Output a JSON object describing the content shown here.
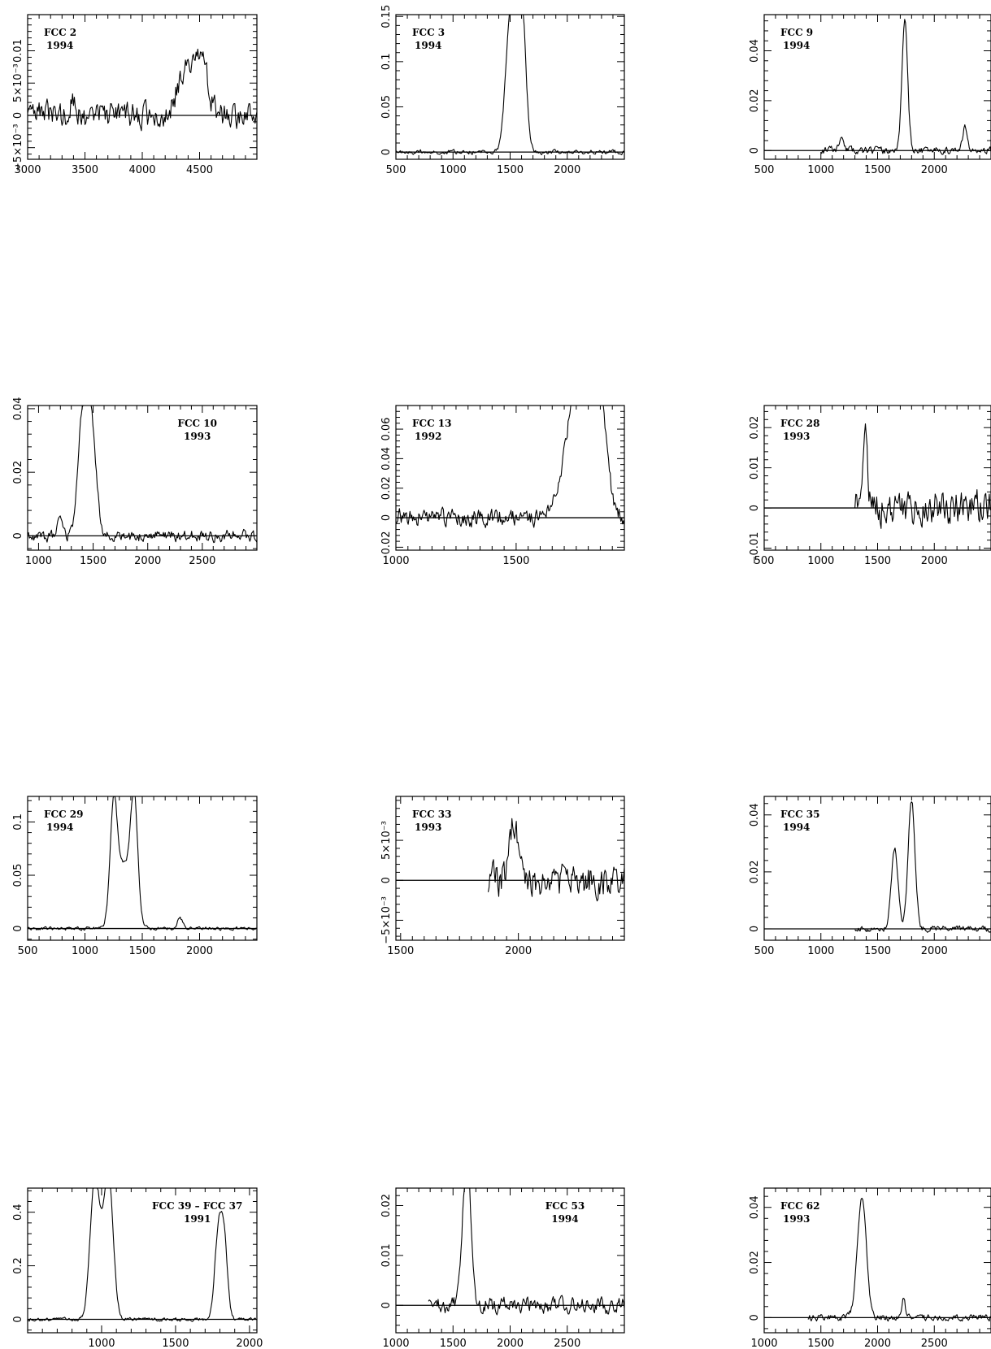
{
  "chart_data": [
    {
      "name": "FCC 2",
      "year": "1994",
      "type": "line",
      "xlim": [
        3000,
        5000
      ],
      "ylim": [
        -0.0068,
        0.0156
      ],
      "xticks": [
        3000,
        3500,
        4000,
        4500
      ],
      "xtick_labels": [
        "3000",
        "3500",
        "4000",
        "4500"
      ],
      "yticks": [
        -0.005,
        0,
        0.005,
        0.01
      ],
      "ytick_labels": [
        "−5×10⁻³",
        "0",
        "5×10⁻³",
        "0.01"
      ],
      "seed": 3,
      "noise": 0.0032,
      "baseline_from": 3000,
      "peaks": [
        [
          4400,
          80,
          0.0085
        ],
        [
          4530,
          45,
          0.0075
        ],
        [
          3400,
          30,
          0.002
        ]
      ],
      "label_pos": "left"
    },
    {
      "name": "FCC 3",
      "year": "1994",
      "type": "line",
      "xlim": [
        500,
        2500
      ],
      "ylim": [
        -0.008,
        0.152
      ],
      "xticks": [
        500,
        1000,
        1500,
        2000
      ],
      "xtick_labels": [
        "500",
        "1000",
        "1500",
        "2000"
      ],
      "yticks": [
        0,
        0.05,
        0.1,
        0.15
      ],
      "ytick_labels": [
        "0",
        "0.05",
        "0.1",
        "0.15"
      ],
      "seed": 7,
      "noise": 0.0035,
      "baseline_from": 500,
      "peaks": [
        [
          1500,
          40,
          0.12
        ],
        [
          1600,
          35,
          0.142
        ],
        [
          1550,
          60,
          0.05
        ]
      ],
      "label_pos": "left"
    },
    {
      "name": "FCC 9",
      "year": "1994",
      "type": "line",
      "xlim": [
        500,
        2500
      ],
      "ylim": [
        -0.0035,
        0.0545
      ],
      "xticks": [
        500,
        1000,
        1500,
        2000
      ],
      "xtick_labels": [
        "500",
        "1000",
        "1500",
        "2000"
      ],
      "yticks": [
        0,
        0.02,
        0.04
      ],
      "ytick_labels": [
        "0",
        "0.02",
        "0.04"
      ],
      "seed": 11,
      "noise": 0.0022,
      "baseline_from": 1000,
      "peaks": [
        [
          1740,
          25,
          0.052
        ],
        [
          2270,
          20,
          0.009
        ],
        [
          1180,
          20,
          0.005
        ]
      ],
      "label_pos": "left"
    },
    {
      "name": "FCC 10",
      "year": "1993",
      "type": "line",
      "xlim": [
        900,
        3000
      ],
      "ylim": [
        -0.0045,
        0.041
      ],
      "xticks": [
        1000,
        1500,
        2000,
        2500
      ],
      "xtick_labels": [
        "1000",
        "1500",
        "2000",
        "2500"
      ],
      "yticks": [
        0,
        0.02,
        0.04
      ],
      "ytick_labels": [
        "0",
        "0.02",
        "0.04"
      ],
      "seed": 17,
      "noise": 0.0028,
      "baseline_from": 900,
      "peaks": [
        [
          1400,
          40,
          0.034
        ],
        [
          1480,
          45,
          0.037
        ],
        [
          1200,
          20,
          0.008
        ]
      ],
      "label_pos": "right"
    },
    {
      "name": "FCC 13",
      "year": "1992",
      "type": "line",
      "xlim": [
        1000,
        1950
      ],
      "ylim": [
        -0.022,
        0.076
      ],
      "xticks": [
        1000,
        1500
      ],
      "xtick_labels": [
        "1000",
        "1500"
      ],
      "yticks": [
        -0.02,
        0,
        0.02,
        0.04,
        0.06
      ],
      "ytick_labels": [
        "−0.02",
        "0",
        "0.02",
        "0.04",
        "0.06"
      ],
      "seed": 23,
      "noise": 0.009,
      "baseline_from": 1000,
      "peaks": [
        [
          1730,
          40,
          0.05
        ],
        [
          1800,
          50,
          0.066
        ],
        [
          1850,
          25,
          0.055
        ]
      ],
      "label_pos": "left"
    },
    {
      "name": "FCC 28",
      "year": "1993",
      "type": "line",
      "xlim": [
        500,
        2500
      ],
      "ylim": [
        -0.0105,
        0.0255
      ],
      "xticks": [
        500,
        1000,
        1500,
        2000
      ],
      "xtick_labels": [
        "500",
        "1000",
        "1500",
        "2000"
      ],
      "yticks": [
        -0.01,
        0,
        0.01,
        0.02
      ],
      "ytick_labels": [
        "−0.01",
        "0",
        "0.01",
        "0.02"
      ],
      "seed": 29,
      "noise": 0.0065,
      "baseline_from": 1300,
      "peaks": [
        [
          1390,
          20,
          0.022
        ]
      ],
      "label_pos": "left"
    },
    {
      "name": "FCC 29",
      "year": "1994",
      "type": "line",
      "xlim": [
        500,
        2500
      ],
      "ylim": [
        -0.011,
        0.124
      ],
      "xticks": [
        500,
        1000,
        1500,
        2000
      ],
      "xtick_labels": [
        "500",
        "1000",
        "1500",
        "2000"
      ],
      "yticks": [
        0,
        0.05,
        0.1
      ],
      "ytick_labels": [
        "0",
        "0.05",
        "0.1"
      ],
      "seed": 31,
      "noise": 0.0025,
      "baseline_from": 500,
      "peaks": [
        [
          1250,
          30,
          0.1
        ],
        [
          1430,
          30,
          0.105
        ],
        [
          1340,
          70,
          0.06
        ],
        [
          1830,
          25,
          0.01
        ]
      ],
      "label_pos": "left"
    },
    {
      "name": "FCC 33",
      "year": "1993",
      "type": "line",
      "xlim": [
        1480,
        2450
      ],
      "ylim": [
        -0.0075,
        0.0105
      ],
      "xticks": [
        1500,
        2000
      ],
      "xtick_labels": [
        "1500",
        "2000"
      ],
      "yticks": [
        -0.005,
        0,
        0.005
      ],
      "ytick_labels": [
        "−5×10⁻³",
        "0",
        "5×10⁻³"
      ],
      "seed": 37,
      "noise": 0.0032,
      "baseline_from": 1870,
      "peaks": [
        [
          1980,
          20,
          0.007
        ]
      ],
      "label_pos": "left"
    },
    {
      "name": "FCC 35",
      "year": "1994",
      "type": "line",
      "xlim": [
        500,
        2500
      ],
      "ylim": [
        -0.004,
        0.0465
      ],
      "xticks": [
        500,
        1000,
        1500,
        2000
      ],
      "xtick_labels": [
        "500",
        "1000",
        "1500",
        "2000"
      ],
      "yticks": [
        0,
        0.02,
        0.04
      ],
      "ytick_labels": [
        "0",
        "0.02",
        "0.04"
      ],
      "seed": 41,
      "noise": 0.0016,
      "baseline_from": 1300,
      "peaks": [
        [
          1650,
          30,
          0.028
        ],
        [
          1800,
          30,
          0.045
        ]
      ],
      "label_pos": "left"
    },
    {
      "name": "FCC 39 – FCC 37",
      "year": "1991",
      "type": "line",
      "xlim": [
        500,
        2050
      ],
      "ylim": [
        -0.05,
        0.49
      ],
      "xticks": [
        1000,
        1500,
        2000
      ],
      "xtick_labels": [
        "1000",
        "1500",
        "2000"
      ],
      "yticks": [
        0,
        0.2,
        0.4
      ],
      "ytick_labels": [
        "0",
        "0.2",
        "0.4"
      ],
      "seed": 43,
      "noise": 0.01,
      "baseline_from": 500,
      "peaks": [
        [
          950,
          30,
          0.42
        ],
        [
          1050,
          30,
          0.44
        ],
        [
          1000,
          45,
          0.2
        ],
        [
          1790,
          25,
          0.32
        ],
        [
          1830,
          22,
          0.26
        ]
      ],
      "label_pos": "right"
    },
    {
      "name": "FCC 53",
      "year": "1994",
      "type": "line",
      "xlim": [
        1000,
        3000
      ],
      "ylim": [
        -0.0055,
        0.0235
      ],
      "xticks": [
        1000,
        1500,
        2000,
        2500
      ],
      "xtick_labels": [
        "1000",
        "1500",
        "2000",
        "2500"
      ],
      "yticks": [
        0,
        0.01,
        0.02
      ],
      "ytick_labels": [
        "0",
        "0.01",
        "0.02"
      ],
      "seed": 47,
      "noise": 0.0024,
      "baseline_from": 1280,
      "peaks": [
        [
          1600,
          30,
          0.019
        ],
        [
          1640,
          25,
          0.018
        ]
      ],
      "label_pos": "right"
    },
    {
      "name": "FCC 62",
      "year": "1993",
      "type": "line",
      "xlim": [
        1000,
        3000
      ],
      "ylim": [
        -0.0055,
        0.047
      ],
      "xticks": [
        1000,
        1500,
        2000,
        2500
      ],
      "xtick_labels": [
        "1000",
        "1500",
        "2000",
        "2500"
      ],
      "yticks": [
        0,
        0.02,
        0.04
      ],
      "ytick_labels": [
        "0",
        "0.02",
        "0.04"
      ],
      "seed": 53,
      "noise": 0.0018,
      "baseline_from": 1380,
      "peaks": [
        [
          1860,
          40,
          0.044
        ],
        [
          2230,
          15,
          0.007
        ]
      ],
      "label_pos": "left"
    }
  ]
}
